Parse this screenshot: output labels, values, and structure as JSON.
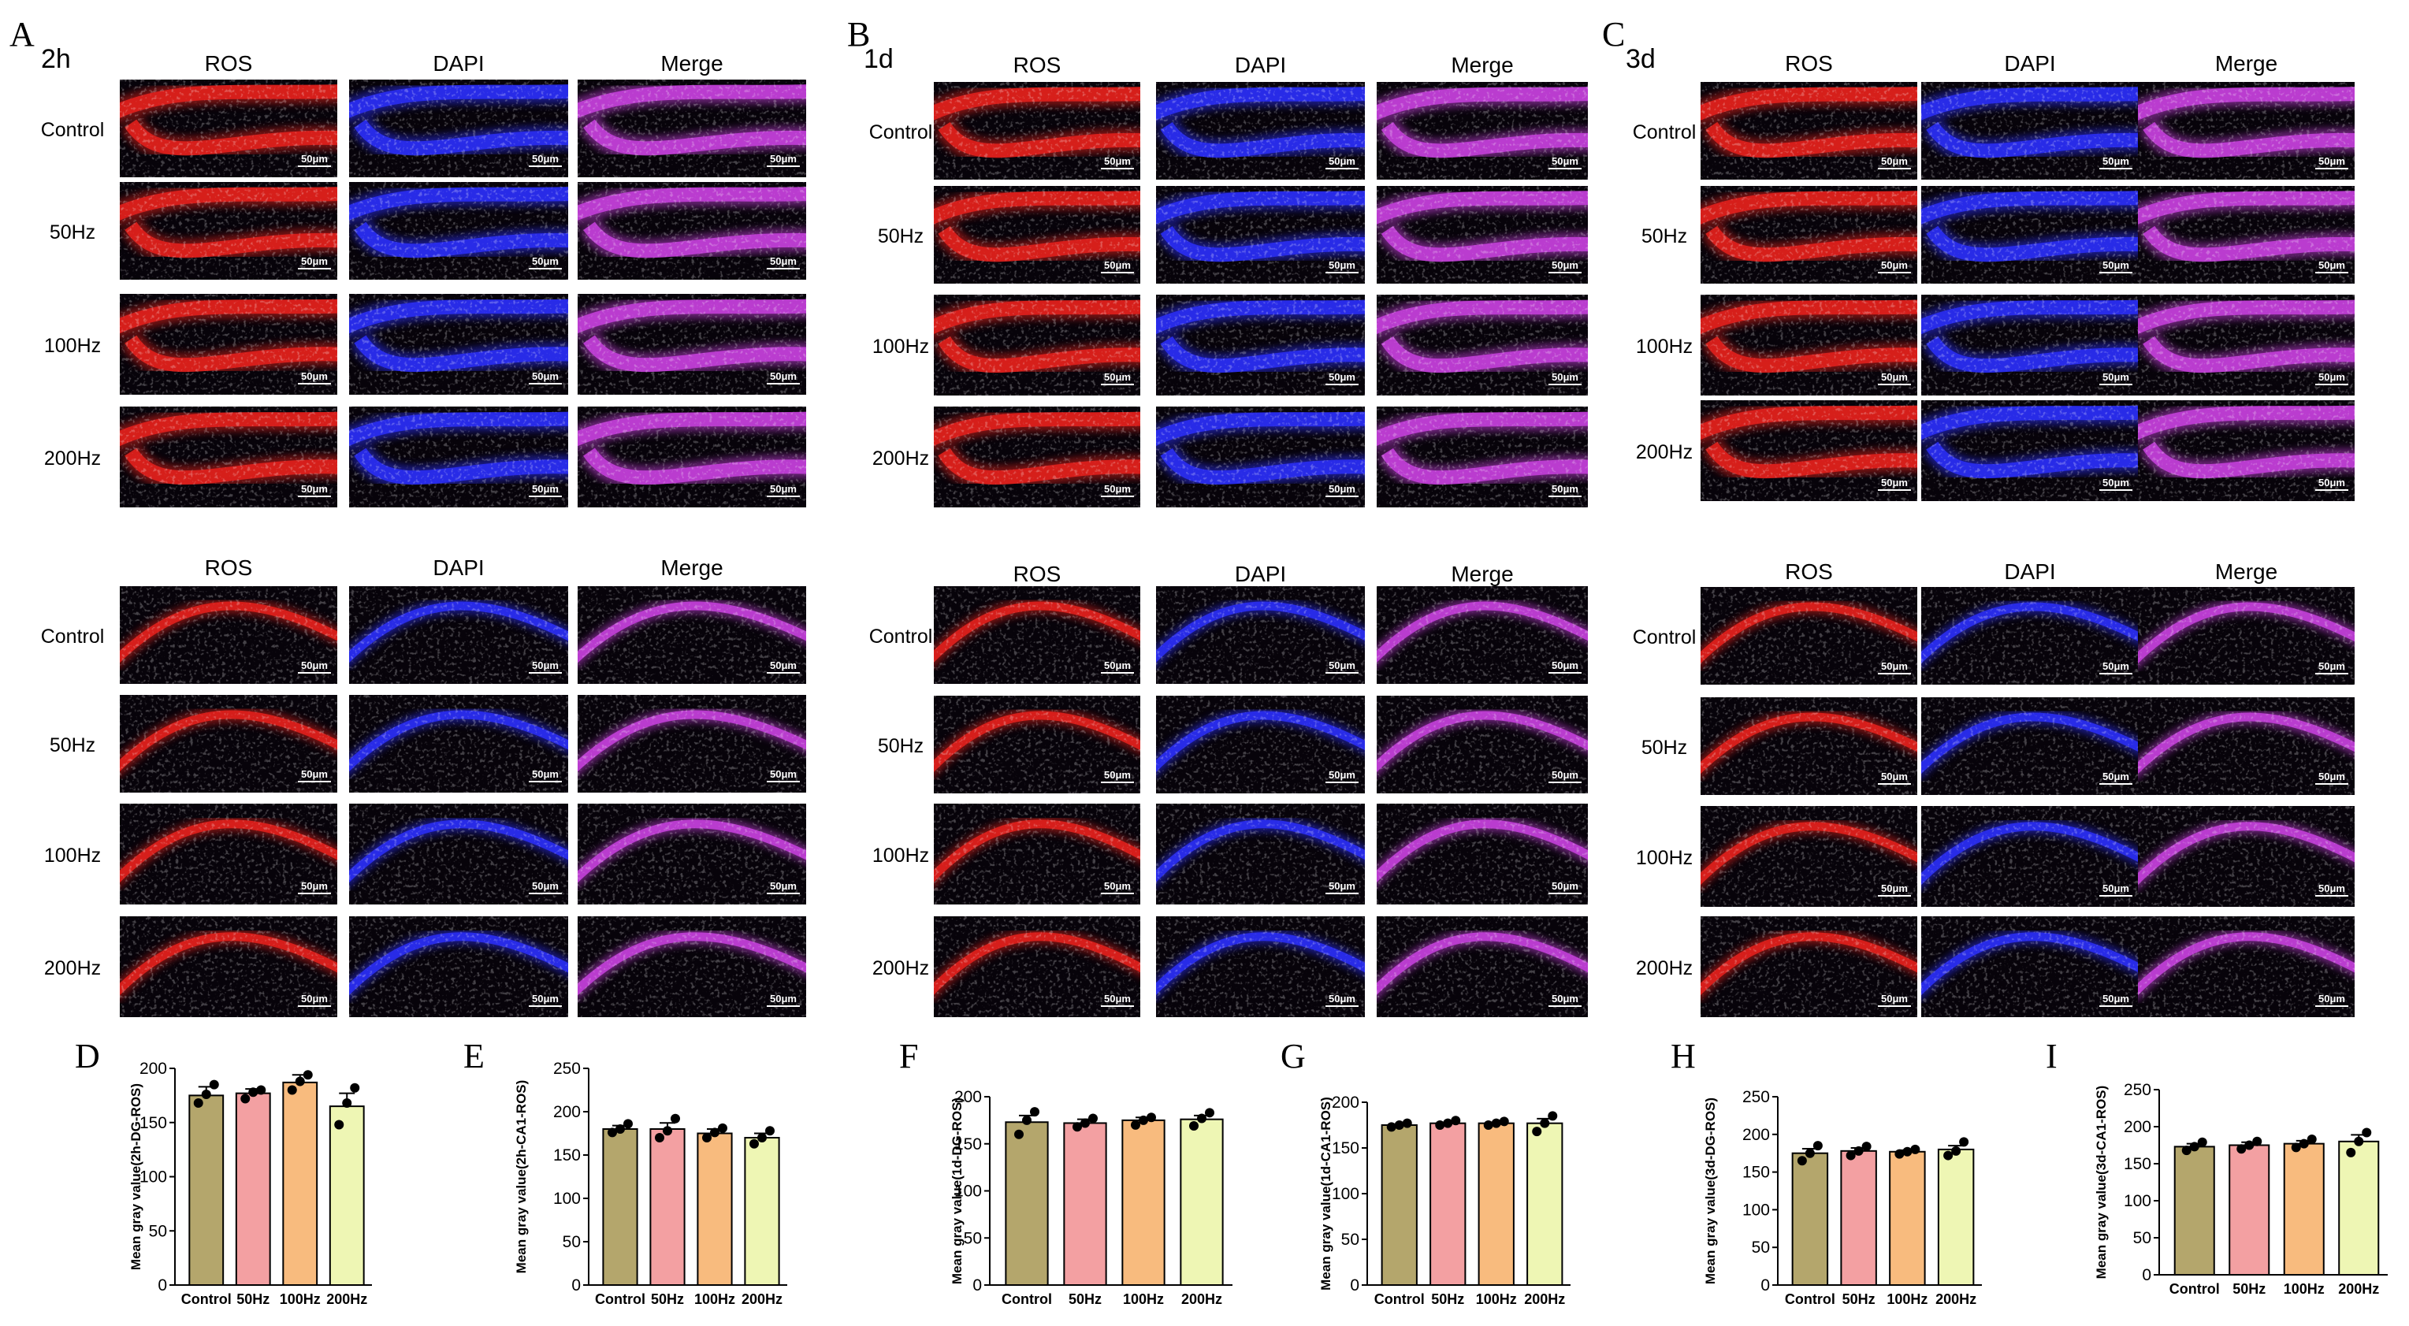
{
  "panels": [
    {
      "letter": "A",
      "time": "2h"
    },
    {
      "letter": "B",
      "time": "1d"
    },
    {
      "letter": "C",
      "time": "3d"
    }
  ],
  "channels": [
    "ROS",
    "DAPI",
    "Merge"
  ],
  "groups": [
    "Control",
    "50Hz",
    "100Hz",
    "200Hz"
  ],
  "scale_bar": "50μm",
  "colors": {
    "ros": "#e0201c",
    "dapi": "#2a2ef2",
    "merge": "#c23fd8",
    "bars": [
      "#b4a66c",
      "#f3a0a2",
      "#f8bb7e",
      "#eef6b4"
    ]
  },
  "chart_data": [
    {
      "type": "bar",
      "letter": "D",
      "categories": [
        "Control",
        "50Hz",
        "100Hz",
        "200Hz"
      ],
      "values": [
        175,
        177,
        187,
        165
      ],
      "points": [
        [
          168,
          176,
          185
        ],
        [
          172,
          178,
          180
        ],
        [
          180,
          188,
          194
        ],
        [
          148,
          168,
          182
        ]
      ],
      "errors": [
        8,
        4,
        7,
        12
      ],
      "ylabel": "Mean gray  value(2h-DG-ROS)",
      "ylim": [
        0,
        200
      ],
      "yticks": [
        0,
        50,
        100,
        150,
        200
      ]
    },
    {
      "type": "bar",
      "letter": "E",
      "categories": [
        "Control",
        "50Hz",
        "100Hz",
        "200Hz"
      ],
      "values": [
        180,
        180,
        175,
        170
      ],
      "points": [
        [
          176,
          180,
          186
        ],
        [
          170,
          178,
          192
        ],
        [
          170,
          176,
          181
        ],
        [
          163,
          170,
          178
        ]
      ],
      "errors": [
        4,
        7,
        5,
        5
      ],
      "ylabel": "Mean gray  value(2h-CA1-ROS)",
      "ylim": [
        0,
        250
      ],
      "yticks": [
        0,
        50,
        100,
        150,
        200,
        250
      ]
    },
    {
      "type": "bar",
      "letter": "F",
      "categories": [
        "Control",
        "50Hz",
        "100Hz",
        "200Hz"
      ],
      "values": [
        173,
        172,
        175,
        176
      ],
      "points": [
        [
          160,
          175,
          184
        ],
        [
          168,
          172,
          177
        ],
        [
          170,
          175,
          178
        ],
        [
          169,
          177,
          183
        ]
      ],
      "errors": [
        7,
        4,
        3,
        4
      ],
      "ylabel": "Mean gray  value(1d-DG-ROS)",
      "ylim": [
        0,
        200
      ],
      "yticks": [
        0,
        50,
        100,
        150,
        200
      ]
    },
    {
      "type": "bar",
      "letter": "G",
      "categories": [
        "Control",
        "50Hz",
        "100Hz",
        "200Hz"
      ],
      "values": [
        175,
        177,
        177,
        177
      ],
      "points": [
        [
          173,
          175,
          177
        ],
        [
          175,
          177,
          180
        ],
        [
          175,
          177,
          179
        ],
        [
          168,
          177,
          185
        ]
      ],
      "errors": [
        1,
        1,
        1,
        5
      ],
      "ylabel": "Mean gray  value(1d-CA1-ROS)",
      "ylim": [
        0,
        200
      ],
      "yticks": [
        0,
        50,
        100,
        150,
        200
      ]
    },
    {
      "type": "bar",
      "letter": "H",
      "categories": [
        "Control",
        "50Hz",
        "100Hz",
        "200Hz"
      ],
      "values": [
        175,
        178,
        177,
        180
      ],
      "points": [
        [
          165,
          175,
          185
        ],
        [
          172,
          178,
          184
        ],
        [
          174,
          177,
          180
        ],
        [
          172,
          178,
          190
        ]
      ],
      "errors": [
        6,
        4,
        2,
        5
      ],
      "ylabel": "Mean gray  value(3d-DG-ROS)",
      "ylim": [
        0,
        250
      ],
      "yticks": [
        0,
        50,
        100,
        150,
        200,
        250
      ]
    },
    {
      "type": "bar",
      "letter": "I",
      "categories": [
        "Control",
        "50Hz",
        "100Hz",
        "200Hz"
      ],
      "values": [
        173,
        175,
        177,
        180
      ],
      "points": [
        [
          168,
          173,
          179
        ],
        [
          170,
          175,
          180
        ],
        [
          172,
          177,
          183
        ],
        [
          165,
          180,
          192
        ]
      ],
      "errors": [
        4,
        4,
        4,
        9
      ],
      "ylabel": "Mean gray  value(3d-CA1-ROS)",
      "ylim": [
        0,
        250
      ],
      "yticks": [
        0,
        50,
        100,
        150,
        200,
        250
      ]
    }
  ]
}
